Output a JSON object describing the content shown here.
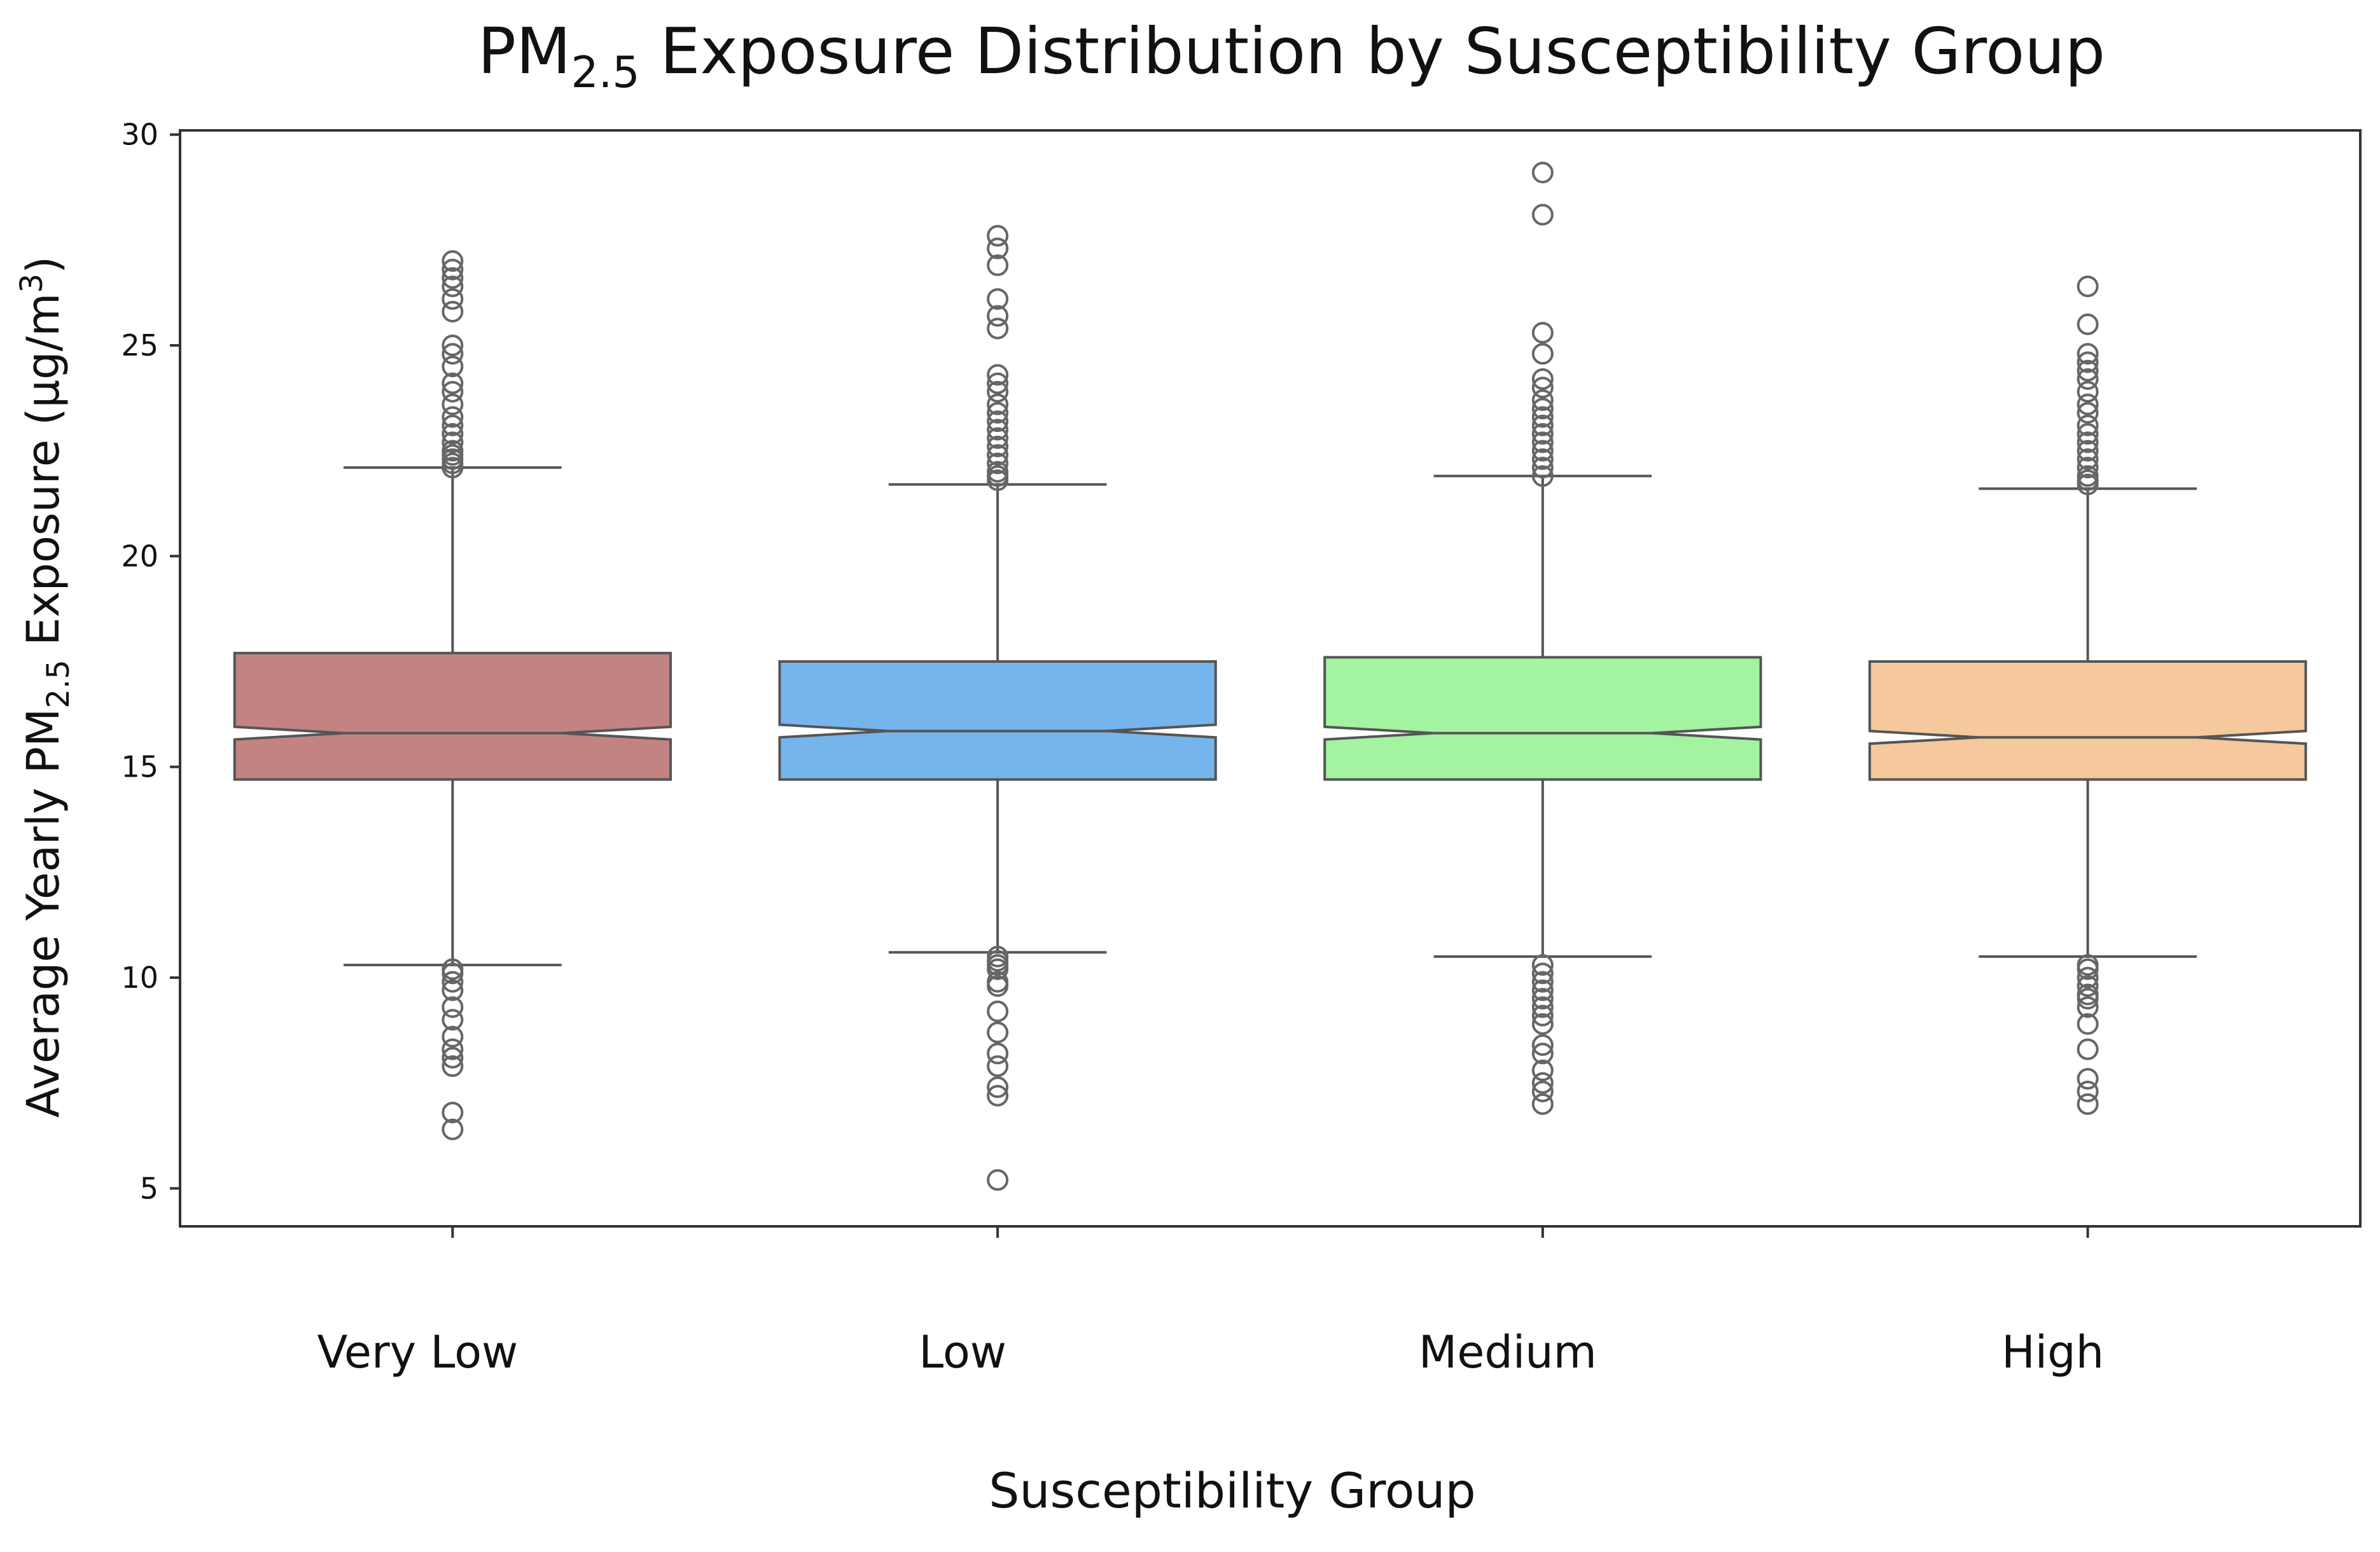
{
  "chart_data": {
    "type": "box",
    "title": {
      "main": "PM",
      "sub": "2.5",
      "rest": " Exposure Distribution by Susceptibility Group"
    },
    "xlabel": "Susceptibility Group",
    "ylabel": {
      "pre": "Average Yearly PM",
      "sub": "2.5",
      "post": " Exposure (μg/m",
      "sup": "3",
      "end": ")"
    },
    "ylim": [
      4.1,
      30.1
    ],
    "yticks": [
      5,
      10,
      15,
      20,
      25,
      30
    ],
    "ytick_labels": [
      "5",
      "10",
      "15",
      "20",
      "25",
      "30"
    ],
    "notched": true,
    "grid": false,
    "legend": "none",
    "categories": [
      "Very Low",
      "Low",
      "Medium",
      "High"
    ],
    "series": [
      {
        "category": "Very Low",
        "color": "#c48383",
        "q1": 14.7,
        "median": 15.8,
        "q3": 17.7,
        "whisker_low": 10.3,
        "whisker_high": 22.1,
        "notch_low": 15.65,
        "notch_high": 15.95,
        "outliers_high": [
          22.1,
          22.2,
          22.3,
          22.4,
          22.5,
          22.7,
          22.9,
          23.1,
          23.3,
          23.6,
          23.9,
          24.1,
          24.5,
          24.8,
          25.0,
          25.8,
          26.1,
          26.4,
          26.6,
          26.8,
          27.0
        ],
        "outliers_low": [
          10.2,
          10.1,
          9.9,
          9.7,
          9.3,
          9.0,
          8.6,
          8.3,
          8.1,
          7.9,
          6.8,
          6.4
        ]
      },
      {
        "category": "Low",
        "color": "#76b4ec",
        "q1": 14.7,
        "median": 15.85,
        "q3": 17.5,
        "whisker_low": 10.6,
        "whisker_high": 21.7,
        "notch_low": 15.7,
        "notch_high": 16.0,
        "outliers_high": [
          21.8,
          21.9,
          22.0,
          22.2,
          22.4,
          22.6,
          22.8,
          23.0,
          23.2,
          23.4,
          23.6,
          23.9,
          24.1,
          24.3,
          25.4,
          25.7,
          26.1,
          26.9,
          27.3,
          27.6
        ],
        "outliers_low": [
          10.5,
          10.4,
          10.3,
          10.2,
          9.9,
          9.8,
          9.2,
          8.7,
          8.2,
          7.9,
          7.4,
          7.2,
          5.2
        ]
      },
      {
        "category": "Medium",
        "color": "#a3f3a1",
        "q1": 14.7,
        "median": 15.8,
        "q3": 17.6,
        "whisker_low": 10.5,
        "whisker_high": 21.9,
        "notch_low": 15.65,
        "notch_high": 15.95,
        "outliers_high": [
          21.9,
          22.1,
          22.3,
          22.5,
          22.7,
          22.9,
          23.1,
          23.3,
          23.5,
          23.7,
          24.0,
          24.2,
          24.8,
          25.3,
          28.1,
          29.1
        ],
        "outliers_low": [
          10.3,
          10.1,
          9.9,
          9.7,
          9.5,
          9.3,
          9.1,
          8.9,
          8.4,
          8.2,
          7.8,
          7.5,
          7.3,
          7.0
        ]
      },
      {
        "category": "High",
        "color": "#f5c89d",
        "q1": 14.7,
        "median": 15.7,
        "q3": 17.5,
        "whisker_low": 10.5,
        "whisker_high": 21.6,
        "notch_low": 15.55,
        "notch_high": 15.85,
        "outliers_high": [
          21.7,
          21.8,
          21.9,
          22.1,
          22.3,
          22.5,
          22.7,
          22.9,
          23.1,
          23.4,
          23.6,
          23.9,
          24.2,
          24.4,
          24.6,
          24.8,
          25.5,
          26.4
        ],
        "outliers_low": [
          10.3,
          10.2,
          10.0,
          9.8,
          9.6,
          9.5,
          9.3,
          8.9,
          8.3,
          7.6,
          7.3,
          7.0
        ]
      }
    ]
  }
}
